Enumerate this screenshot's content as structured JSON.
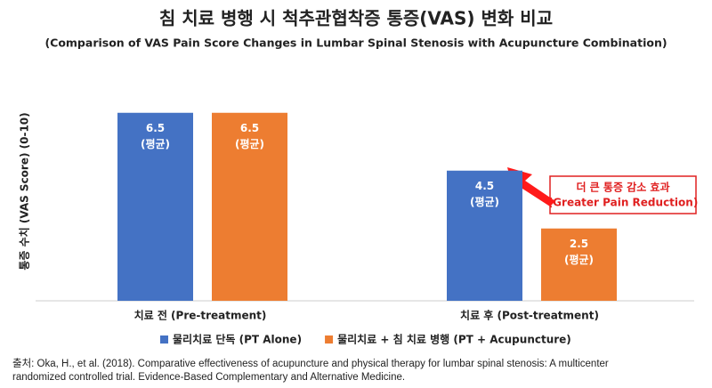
{
  "chart_data": {
    "type": "bar",
    "title": "침 치료 병행 시 척추관협착증 통증(VAS) 변화 비교",
    "subtitle": "(Comparison of VAS Pain Score Changes in Lumbar Spinal Stenosis with Acupuncture Combination)",
    "y_label": "통증 수치 (VAS Score) (0-10)",
    "categories": [
      "치료 전 (Pre-treatment)",
      "치료 후 (Post-treatment)"
    ],
    "series": [
      {
        "name": "물리치료 단독 (PT Alone)",
        "color": "#4472c4",
        "values": [
          6.5,
          4.5
        ],
        "value_labels": [
          "6.5\n(평균)",
          "4.5\n(평균)"
        ]
      },
      {
        "name": "물리치료 + 침 치료 병행 (PT + Acupuncture)",
        "color": "#ed7d31",
        "values": [
          6.5,
          2.5
        ],
        "value_labels": [
          "6.5\n(평균)",
          "2.5\n(평균)"
        ]
      }
    ],
    "ylim": [
      0,
      10
    ],
    "annotation": [
      "더 큰 통증 감소 효과",
      "(Greater Pain Reduction)"
    ],
    "source": "출처: Oka, H., et al. (2018). Comparative effectiveness of acupuncture and physical therapy for lumbar spinal stenosis: A multicenter randomized controlled trial. Evidence-Based Complementary and Alternative Medicine."
  }
}
